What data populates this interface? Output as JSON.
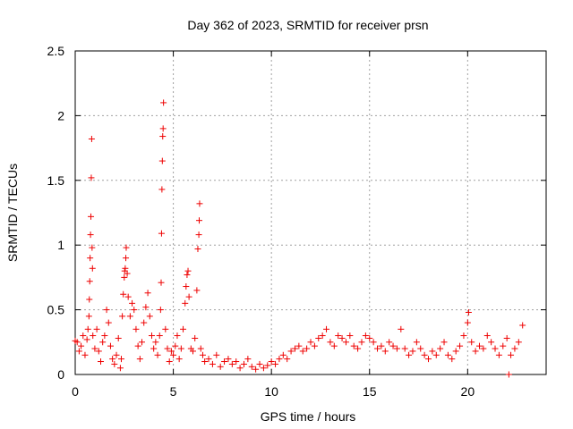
{
  "chart_data": {
    "type": "scatter",
    "title": "Day 362 of 2023, SRMTID for receiver prsn",
    "xlabel": "GPS time / hours",
    "ylabel": "SRMTID / TECUs",
    "xlim": [
      0,
      24
    ],
    "ylim": [
      0,
      2.5
    ],
    "xticks": [
      0,
      5,
      10,
      15,
      20
    ],
    "yticks": [
      0,
      0.5,
      1,
      1.5,
      2,
      2.5
    ],
    "grid": true,
    "marker": "+",
    "series": [
      {
        "name": "SRMTID",
        "color": "#ee0000",
        "points": [
          [
            0.0,
            0.26
          ],
          [
            0.1,
            0.25
          ],
          [
            0.2,
            0.18
          ],
          [
            0.3,
            0.22
          ],
          [
            0.4,
            0.3
          ],
          [
            0.5,
            0.15
          ],
          [
            0.6,
            0.27
          ],
          [
            0.65,
            0.35
          ],
          [
            0.7,
            0.45
          ],
          [
            0.72,
            0.58
          ],
          [
            0.74,
            0.72
          ],
          [
            0.76,
            0.9
          ],
          [
            0.78,
            1.08
          ],
          [
            0.8,
            1.22
          ],
          [
            0.82,
            1.52
          ],
          [
            0.84,
            1.82
          ],
          [
            0.86,
            0.98
          ],
          [
            0.88,
            0.82
          ],
          [
            0.9,
            0.3
          ],
          [
            1.0,
            0.2
          ],
          [
            1.1,
            0.35
          ],
          [
            1.2,
            0.18
          ],
          [
            1.3,
            0.1
          ],
          [
            1.4,
            0.25
          ],
          [
            1.5,
            0.3
          ],
          [
            1.6,
            0.5
          ],
          [
            1.7,
            0.4
          ],
          [
            1.8,
            0.22
          ],
          [
            1.9,
            0.12
          ],
          [
            2.0,
            0.08
          ],
          [
            2.1,
            0.15
          ],
          [
            2.2,
            0.28
          ],
          [
            2.3,
            0.05
          ],
          [
            2.35,
            0.12
          ],
          [
            2.4,
            0.45
          ],
          [
            2.45,
            0.62
          ],
          [
            2.5,
            0.75
          ],
          [
            2.52,
            0.8
          ],
          [
            2.55,
            0.82
          ],
          [
            2.58,
            0.9
          ],
          [
            2.6,
            0.98
          ],
          [
            2.65,
            0.78
          ],
          [
            2.7,
            0.6
          ],
          [
            2.8,
            0.45
          ],
          [
            2.9,
            0.55
          ],
          [
            3.0,
            0.5
          ],
          [
            3.1,
            0.35
          ],
          [
            3.2,
            0.22
          ],
          [
            3.3,
            0.12
          ],
          [
            3.4,
            0.25
          ],
          [
            3.5,
            0.4
          ],
          [
            3.6,
            0.52
          ],
          [
            3.7,
            0.63
          ],
          [
            3.8,
            0.45
          ],
          [
            3.9,
            0.3
          ],
          [
            4.0,
            0.2
          ],
          [
            4.1,
            0.25
          ],
          [
            4.2,
            0.15
          ],
          [
            4.3,
            0.3
          ],
          [
            4.35,
            0.5
          ],
          [
            4.38,
            0.71
          ],
          [
            4.4,
            1.09
          ],
          [
            4.42,
            1.43
          ],
          [
            4.44,
            1.65
          ],
          [
            4.46,
            1.84
          ],
          [
            4.48,
            1.9
          ],
          [
            4.5,
            2.1
          ],
          [
            4.6,
            0.35
          ],
          [
            4.7,
            0.2
          ],
          [
            4.8,
            0.1
          ],
          [
            4.9,
            0.18
          ],
          [
            5.0,
            0.15
          ],
          [
            5.1,
            0.22
          ],
          [
            5.2,
            0.3
          ],
          [
            5.3,
            0.12
          ],
          [
            5.4,
            0.2
          ],
          [
            5.5,
            0.35
          ],
          [
            5.6,
            0.55
          ],
          [
            5.65,
            0.68
          ],
          [
            5.7,
            0.77
          ],
          [
            5.75,
            0.8
          ],
          [
            5.8,
            0.6
          ],
          [
            5.9,
            0.2
          ],
          [
            6.0,
            0.18
          ],
          [
            6.1,
            0.28
          ],
          [
            6.2,
            0.65
          ],
          [
            6.25,
            0.97
          ],
          [
            6.3,
            1.08
          ],
          [
            6.32,
            1.19
          ],
          [
            6.34,
            1.32
          ],
          [
            6.4,
            0.2
          ],
          [
            6.5,
            0.15
          ],
          [
            6.6,
            0.1
          ],
          [
            6.8,
            0.12
          ],
          [
            7.0,
            0.08
          ],
          [
            7.2,
            0.15
          ],
          [
            7.4,
            0.06
          ],
          [
            7.6,
            0.1
          ],
          [
            7.8,
            0.12
          ],
          [
            8.0,
            0.08
          ],
          [
            8.2,
            0.1
          ],
          [
            8.4,
            0.05
          ],
          [
            8.6,
            0.08
          ],
          [
            8.8,
            0.12
          ],
          [
            9.0,
            0.06
          ],
          [
            9.2,
            0.04
          ],
          [
            9.4,
            0.08
          ],
          [
            9.6,
            0.05
          ],
          [
            9.8,
            0.07
          ],
          [
            10.0,
            0.1
          ],
          [
            10.2,
            0.08
          ],
          [
            10.4,
            0.12
          ],
          [
            10.6,
            0.15
          ],
          [
            10.8,
            0.12
          ],
          [
            11.0,
            0.18
          ],
          [
            11.2,
            0.2
          ],
          [
            11.4,
            0.22
          ],
          [
            11.6,
            0.18
          ],
          [
            11.8,
            0.2
          ],
          [
            12.0,
            0.25
          ],
          [
            12.2,
            0.22
          ],
          [
            12.4,
            0.28
          ],
          [
            12.6,
            0.3
          ],
          [
            12.8,
            0.35
          ],
          [
            13.0,
            0.25
          ],
          [
            13.2,
            0.22
          ],
          [
            13.4,
            0.3
          ],
          [
            13.6,
            0.28
          ],
          [
            13.8,
            0.25
          ],
          [
            14.0,
            0.3
          ],
          [
            14.2,
            0.22
          ],
          [
            14.4,
            0.2
          ],
          [
            14.6,
            0.25
          ],
          [
            14.8,
            0.3
          ],
          [
            15.0,
            0.28
          ],
          [
            15.2,
            0.25
          ],
          [
            15.4,
            0.2
          ],
          [
            15.6,
            0.22
          ],
          [
            15.8,
            0.18
          ],
          [
            16.0,
            0.25
          ],
          [
            16.2,
            0.22
          ],
          [
            16.4,
            0.2
          ],
          [
            16.6,
            0.35
          ],
          [
            16.8,
            0.2
          ],
          [
            17.0,
            0.15
          ],
          [
            17.2,
            0.18
          ],
          [
            17.4,
            0.25
          ],
          [
            17.6,
            0.2
          ],
          [
            17.8,
            0.15
          ],
          [
            18.0,
            0.12
          ],
          [
            18.2,
            0.18
          ],
          [
            18.4,
            0.15
          ],
          [
            18.6,
            0.2
          ],
          [
            18.8,
            0.25
          ],
          [
            19.0,
            0.15
          ],
          [
            19.2,
            0.12
          ],
          [
            19.4,
            0.18
          ],
          [
            19.6,
            0.22
          ],
          [
            19.8,
            0.3
          ],
          [
            20.0,
            0.4
          ],
          [
            20.05,
            0.48
          ],
          [
            20.2,
            0.25
          ],
          [
            20.4,
            0.18
          ],
          [
            20.6,
            0.22
          ],
          [
            20.8,
            0.2
          ],
          [
            21.0,
            0.3
          ],
          [
            21.2,
            0.25
          ],
          [
            21.4,
            0.2
          ],
          [
            21.6,
            0.15
          ],
          [
            21.8,
            0.22
          ],
          [
            22.0,
            0.28
          ],
          [
            22.1,
            0.0
          ],
          [
            22.2,
            0.15
          ],
          [
            22.4,
            0.2
          ],
          [
            22.6,
            0.25
          ],
          [
            22.8,
            0.38
          ]
        ]
      }
    ]
  }
}
